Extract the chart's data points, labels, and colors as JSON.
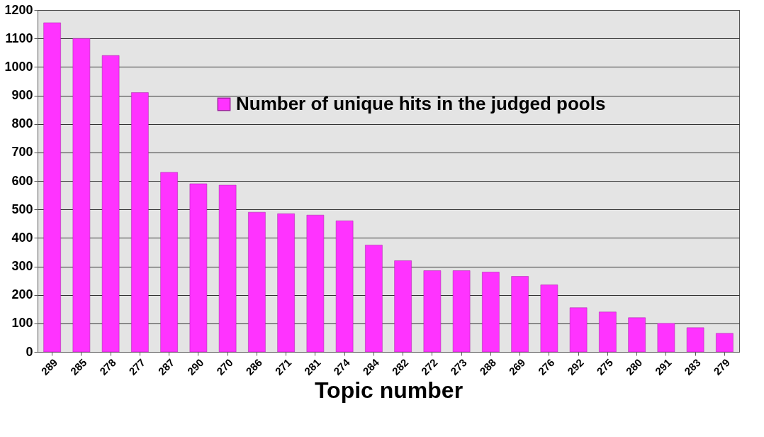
{
  "chart_data": {
    "type": "bar",
    "xlabel": "Topic number",
    "categories": [
      "289",
      "285",
      "278",
      "277",
      "287",
      "290",
      "270",
      "286",
      "271",
      "281",
      "274",
      "284",
      "282",
      "272",
      "273",
      "288",
      "269",
      "276",
      "292",
      "275",
      "280",
      "291",
      "283",
      "279"
    ],
    "series": [
      {
        "name": "Number of unique hits in the judged pools",
        "color": "#ff33ff",
        "values": [
          1155,
          1100,
          1040,
          910,
          630,
          590,
          585,
          490,
          485,
          480,
          460,
          375,
          320,
          285,
          285,
          280,
          265,
          235,
          155,
          140,
          120,
          100,
          85,
          65
        ]
      }
    ],
    "ylim": [
      0,
      1200
    ],
    "yticks": [
      0,
      100,
      200,
      300,
      400,
      500,
      600,
      700,
      800,
      900,
      1000,
      1100,
      1200
    ],
    "grid": "y",
    "legend": "top right"
  }
}
